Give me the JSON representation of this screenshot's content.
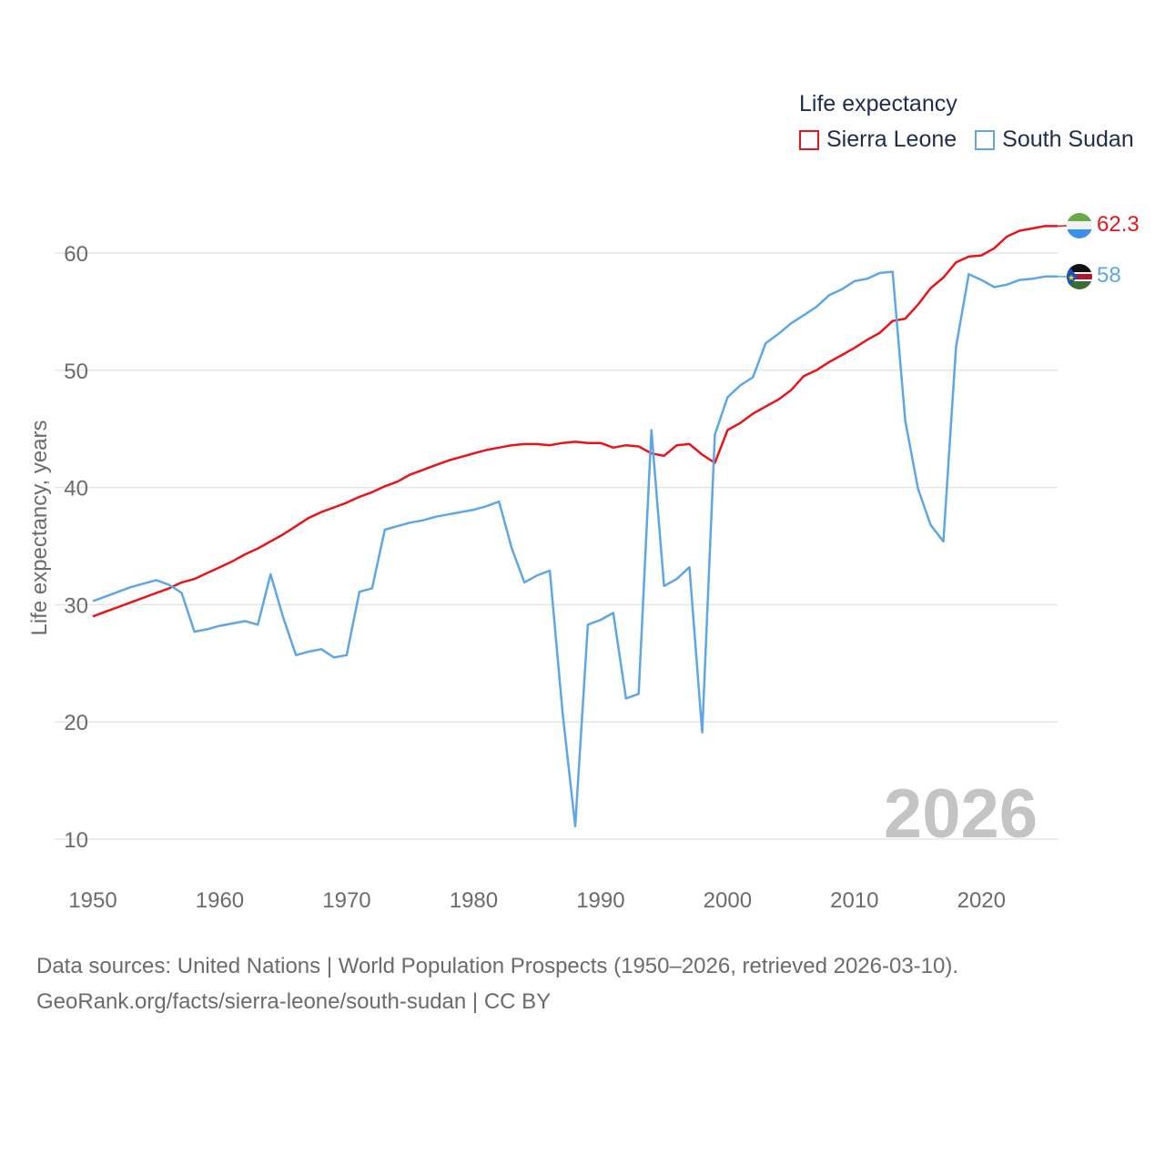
{
  "legend": {
    "title": "Life expectancy",
    "items": [
      {
        "name": "Sierra Leone",
        "color": "#e8141a"
      },
      {
        "name": "South Sudan",
        "color": "#5ea6e6"
      }
    ]
  },
  "year_label": "2026",
  "sources": {
    "line1": "Data sources: United Nations | World Population Prospects (1950–2026, retrieved 2026-03-10).",
    "line2": "GeoRank.org/facts/sierra-leone/south-sudan | CC BY"
  },
  "chart_data": {
    "type": "line",
    "title": "Life expectancy",
    "xlabel": "",
    "ylabel": "Life expectancy, years",
    "xlim": [
      1950,
      2026
    ],
    "ylim": [
      10,
      65
    ],
    "x_ticks": [
      1950,
      1960,
      1970,
      1980,
      1990,
      2000,
      2010,
      2020
    ],
    "y_ticks": [
      10,
      20,
      30,
      40,
      50,
      60
    ],
    "grid": true,
    "legend_position": "top-right",
    "x": [
      1950,
      1951,
      1952,
      1953,
      1954,
      1955,
      1956,
      1957,
      1958,
      1959,
      1960,
      1961,
      1962,
      1963,
      1964,
      1965,
      1966,
      1967,
      1968,
      1969,
      1970,
      1971,
      1972,
      1973,
      1974,
      1975,
      1976,
      1977,
      1978,
      1979,
      1980,
      1981,
      1982,
      1983,
      1984,
      1985,
      1986,
      1987,
      1988,
      1989,
      1990,
      1991,
      1992,
      1993,
      1994,
      1995,
      1996,
      1997,
      1998,
      1999,
      2000,
      2001,
      2002,
      2003,
      2004,
      2005,
      2006,
      2007,
      2008,
      2009,
      2010,
      2011,
      2012,
      2013,
      2014,
      2015,
      2016,
      2017,
      2018,
      2019,
      2020,
      2021,
      2022,
      2023,
      2024,
      2025,
      2026
    ],
    "series": [
      {
        "name": "Sierra Leone",
        "color": "#e8141a",
        "end_label": "62.3",
        "values": [
          29.0,
          29.4,
          29.8,
          30.2,
          30.6,
          31.0,
          31.4,
          31.9,
          32.2,
          32.7,
          33.2,
          33.7,
          34.3,
          34.8,
          35.4,
          36.0,
          36.7,
          37.4,
          37.9,
          38.3,
          38.7,
          39.2,
          39.6,
          40.1,
          40.5,
          41.1,
          41.5,
          41.9,
          42.3,
          42.6,
          42.9,
          43.2,
          43.4,
          43.6,
          43.7,
          43.7,
          43.6,
          43.8,
          43.9,
          43.8,
          43.8,
          43.4,
          43.6,
          43.5,
          42.9,
          42.7,
          43.6,
          43.7,
          42.8,
          42.1,
          44.9,
          45.5,
          46.3,
          46.9,
          47.5,
          48.3,
          49.5,
          50.0,
          50.7,
          51.3,
          51.9,
          52.6,
          53.2,
          54.2,
          54.4,
          55.6,
          57.0,
          57.9,
          59.2,
          59.7,
          59.8,
          60.4,
          61.4,
          61.9,
          62.1,
          62.3,
          62.3
        ]
      },
      {
        "name": "South Sudan",
        "color": "#5ea6e6",
        "end_label": "58",
        "values": [
          30.3,
          30.7,
          31.1,
          31.5,
          31.8,
          32.1,
          31.7,
          31.0,
          27.7,
          27.9,
          28.2,
          28.4,
          28.6,
          28.3,
          32.6,
          28.9,
          25.7,
          26.0,
          26.2,
          25.5,
          25.7,
          31.1,
          31.4,
          36.4,
          36.7,
          37.0,
          37.2,
          37.5,
          37.7,
          37.9,
          38.1,
          38.4,
          38.8,
          34.8,
          31.9,
          32.5,
          32.9,
          20.8,
          11.1,
          28.3,
          28.7,
          29.3,
          22.0,
          22.4,
          44.9,
          31.6,
          32.2,
          33.2,
          19.1,
          44.5,
          47.7,
          48.7,
          49.4,
          52.3,
          53.1,
          54.0,
          54.7,
          55.4,
          56.4,
          56.9,
          57.6,
          57.8,
          58.3,
          58.4,
          45.7,
          39.9,
          36.8,
          35.4,
          52.0,
          58.2,
          57.7,
          57.1,
          57.3,
          57.7,
          57.8,
          58.0,
          58.0
        ]
      }
    ]
  }
}
